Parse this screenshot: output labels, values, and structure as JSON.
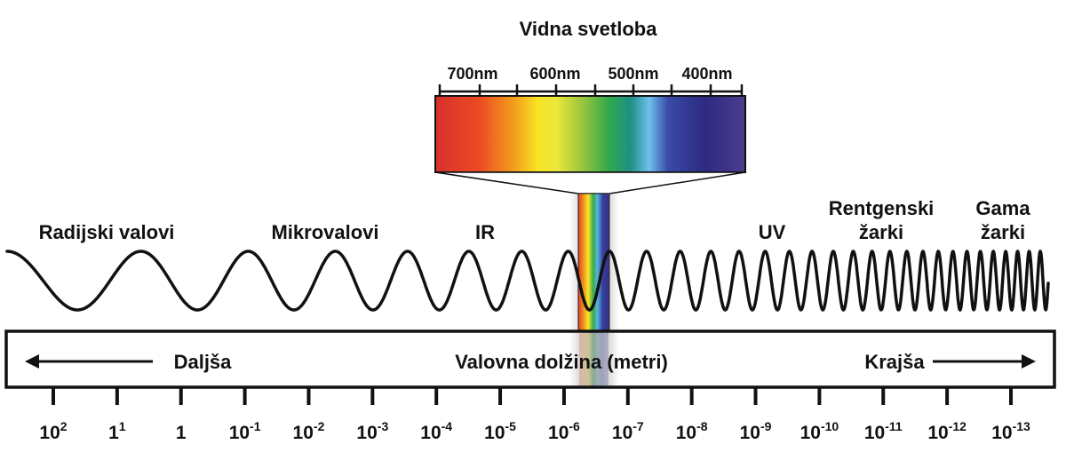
{
  "title": "Vidna svetloba",
  "visible_scale": {
    "labels": [
      "700nm",
      "600nm",
      "500nm",
      "400nm"
    ],
    "wavelengths_nm": [
      700,
      600,
      500,
      400
    ]
  },
  "bands": {
    "radio": "Radijski valovi",
    "micro": "Mikrovalovi",
    "ir": "IR",
    "uv": "UV",
    "xray_line1": "Rentgenski",
    "xray_line2": "žarki",
    "gamma_line1": "Gama",
    "gamma_line2": "žarki"
  },
  "axis": {
    "longer": "Daljša",
    "label": "Valovna dolžina (metri)",
    "shorter": "Krajša"
  },
  "ticks": [
    {
      "base": "10",
      "exp": "2"
    },
    {
      "base": "1",
      "exp": "1"
    },
    {
      "base": "1",
      "exp": ""
    },
    {
      "base": "10",
      "exp": "-1"
    },
    {
      "base": "10",
      "exp": "-2"
    },
    {
      "base": "10",
      "exp": "-3"
    },
    {
      "base": "10",
      "exp": "-4"
    },
    {
      "base": "10",
      "exp": "-5"
    },
    {
      "base": "10",
      "exp": "-6"
    },
    {
      "base": "10",
      "exp": "-7"
    },
    {
      "base": "10",
      "exp": "-8"
    },
    {
      "base": "10",
      "exp": "-9"
    },
    {
      "base": "10",
      "exp": "-10"
    },
    {
      "base": "10",
      "exp": "-11"
    },
    {
      "base": "10",
      "exp": "-12"
    },
    {
      "base": "10",
      "exp": "-13"
    }
  ],
  "colors": {
    "ink": "#111111",
    "spectrum": [
      "#e23a2a",
      "#f0761c",
      "#f6c41a",
      "#f8ef28",
      "#9ec73a",
      "#2ea84a",
      "#1f8c9c",
      "#67b8e6",
      "#3a3f9e",
      "#2e2a7e",
      "#4d3a8e"
    ]
  }
}
